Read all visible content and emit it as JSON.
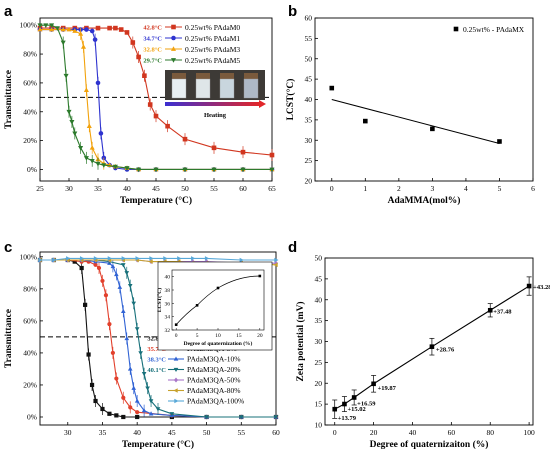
{
  "panels": [
    {
      "letter": "a"
    },
    {
      "letter": "b"
    },
    {
      "letter": "c"
    },
    {
      "letter": "d"
    }
  ],
  "chart_data": [
    {
      "panel": "a",
      "type": "line",
      "xlabel": "Temperature (°C)",
      "ylabel": "Transmittance",
      "xlim": [
        25,
        65
      ],
      "ylim": [
        -8,
        105
      ],
      "xticks": [
        "25",
        "30",
        "35",
        "40",
        "45",
        "50",
        "55",
        "60",
        "65"
      ],
      "yticks": [
        "0%",
        "20%",
        "40%",
        "60%",
        "80%",
        "100%"
      ],
      "dashed_line_y": 50,
      "inset_caption": "Heating",
      "series": [
        {
          "name": "0.25wt% PAdaM0",
          "lcst": "42.8°C",
          "color": "#d1361f",
          "marker": "square",
          "x": [
            25,
            27,
            29,
            31,
            33,
            35,
            37,
            38,
            39,
            40,
            41,
            42,
            43,
            44,
            45,
            47,
            50,
            55,
            60,
            65
          ],
          "y": [
            98,
            98,
            98,
            98,
            98,
            98,
            98,
            98,
            97,
            95,
            88,
            78,
            65,
            45,
            37,
            30,
            21,
            15,
            12,
            10
          ]
        },
        {
          "name": "0.25wt% PAdaM1",
          "lcst": "34.7°C",
          "color": "#2e33cf",
          "marker": "circle",
          "x": [
            25,
            27,
            29,
            31,
            32,
            33,
            34,
            34.5,
            35,
            35.5,
            36,
            37,
            38,
            40,
            42,
            45,
            50,
            55,
            60,
            65
          ],
          "y": [
            97,
            97,
            97,
            97,
            97,
            97,
            96,
            90,
            60,
            25,
            8,
            3,
            1,
            0,
            0,
            0,
            0,
            0,
            0,
            0
          ]
        },
        {
          "name": "0.25wt% PAdaM3",
          "lcst": "32.8°C",
          "color": "#f2a20c",
          "marker": "triangle-up",
          "x": [
            25,
            27,
            29,
            30,
            31,
            32,
            32.5,
            33,
            33.5,
            34,
            35,
            36,
            37,
            38,
            40,
            42,
            45,
            50,
            55,
            60,
            65
          ],
          "y": [
            97,
            97,
            97,
            97,
            96,
            94,
            85,
            55,
            30,
            15,
            7,
            4,
            3,
            2,
            1,
            0,
            0,
            0,
            0,
            0,
            0
          ]
        },
        {
          "name": "0.25wt% PAdaM5",
          "lcst": "29.7°C",
          "color": "#2c7a2c",
          "marker": "triangle-down",
          "x": [
            25,
            26,
            27,
            28,
            29,
            29.5,
            30,
            30.5,
            31,
            32,
            33,
            34,
            35,
            36,
            38,
            40,
            42,
            45,
            50,
            55,
            60,
            65
          ],
          "y": [
            100,
            100,
            100,
            98,
            88,
            65,
            40,
            33,
            25,
            15,
            8,
            6,
            4,
            3,
            2,
            1,
            0,
            0,
            0,
            0,
            0,
            0
          ]
        }
      ]
    },
    {
      "panel": "b",
      "type": "scatter",
      "xlabel": "AdaMMA(mol%)",
      "ylabel": "LCST(°C)",
      "xlim": [
        -0.5,
        6
      ],
      "ylim": [
        20,
        60
      ],
      "xticks": [
        "0",
        "1",
        "2",
        "3",
        "4",
        "5",
        "6"
      ],
      "yticks": [
        "20",
        "25",
        "30",
        "35",
        "40",
        "45",
        "50",
        "55",
        "60"
      ],
      "legend": "0.25wt% - PAdaMX",
      "series": [
        {
          "name": "0.25wt% - PAdaMX",
          "x": [
            0,
            1,
            3,
            5
          ],
          "y": [
            42.8,
            34.7,
            32.8,
            29.7
          ]
        }
      ],
      "fit_line": {
        "x": [
          0,
          5
        ],
        "y": [
          40.0,
          29.2
        ]
      }
    },
    {
      "panel": "c",
      "type": "line",
      "xlabel": "Temperature (°C)",
      "ylabel": "Transmittance",
      "xlim": [
        26,
        60
      ],
      "ylim": [
        -5,
        103
      ],
      "xticks": [
        "30",
        "35",
        "40",
        "45",
        "50",
        "55",
        "60"
      ],
      "yticks": [
        "0%",
        "20%",
        "40%",
        "60%",
        "80%",
        "100%"
      ],
      "dashed_line_y": 50,
      "inset": {
        "type": "line",
        "xlabel": "Degree of quaternization (%)",
        "ylabel": "LCST(°C)",
        "xlim": [
          -1,
          21
        ],
        "ylim": [
          32,
          41
        ],
        "xticks": [
          "0",
          "5",
          "10",
          "15",
          "20"
        ],
        "yticks": [
          "32",
          "34",
          "36",
          "38",
          "40"
        ],
        "x": [
          0,
          5,
          10,
          20
        ],
        "y": [
          32.8,
          35.7,
          38.3,
          40.1
        ]
      },
      "series": [
        {
          "name": "PAdaM3",
          "lcst": "32.8°C",
          "color": "#111111",
          "marker": "square",
          "x": [
            26,
            28,
            30,
            31,
            32,
            32.5,
            33,
            33.5,
            34,
            35,
            36,
            37,
            38,
            40,
            45,
            50,
            55,
            60
          ],
          "y": [
            98,
            98,
            98,
            97,
            93,
            70,
            39,
            20,
            10,
            5,
            2,
            1,
            0,
            0,
            0,
            0,
            0,
            0
          ]
        },
        {
          "name": "PAdaM3QA-5%",
          "lcst": "35.7°C",
          "color": "#e2402c",
          "marker": "circle",
          "x": [
            26,
            28,
            30,
            32,
            33,
            34,
            34.5,
            35,
            35.5,
            36,
            36.5,
            37,
            38,
            39,
            40,
            45,
            50,
            55,
            60
          ],
          "y": [
            98,
            98,
            98,
            97,
            97,
            95,
            93,
            85,
            76,
            58,
            40,
            24,
            12,
            6,
            3,
            1,
            0,
            0,
            0
          ]
        },
        {
          "name": "PAdaM3QA-10%",
          "lcst": "38.3°C",
          "color": "#3163d4",
          "marker": "triangle-up",
          "x": [
            26,
            28,
            30,
            32,
            34,
            36,
            36.5,
            37,
            37.5,
            38,
            38.5,
            39,
            39.5,
            40,
            41,
            42,
            45,
            50,
            55,
            60
          ],
          "y": [
            98,
            98,
            98,
            98,
            97,
            96,
            94,
            89,
            81,
            66,
            49,
            30,
            18,
            10,
            4,
            2,
            1,
            0,
            0,
            0
          ]
        },
        {
          "name": "PAdaM3QA-20%",
          "lcst": "40.1°C",
          "color": "#17707a",
          "marker": "triangle-down",
          "x": [
            26,
            28,
            30,
            32,
            34,
            36,
            38,
            38.5,
            39,
            39.5,
            40,
            40.5,
            41,
            41.5,
            42,
            43,
            45,
            50,
            55,
            60
          ],
          "y": [
            98,
            98,
            98,
            98,
            98,
            97,
            95,
            90,
            82,
            71,
            55,
            40,
            27,
            18,
            10,
            5,
            2,
            0,
            0,
            0
          ]
        },
        {
          "name": "PAdaM3QA-50%",
          "lcst": "",
          "color": "#a977c9",
          "marker": "diamond",
          "x": [
            26,
            28,
            30,
            32,
            34,
            36,
            38,
            40,
            42,
            44,
            46,
            48,
            50,
            55,
            60
          ],
          "y": [
            98,
            98,
            98,
            98,
            98,
            98,
            98,
            98,
            97,
            97,
            97,
            97,
            97,
            96,
            96
          ]
        },
        {
          "name": "PAdaM3QA-80%",
          "lcst": "",
          "color": "#c7a12c",
          "marker": "triangle-left",
          "x": [
            26,
            28,
            30,
            32,
            34,
            36,
            38,
            40,
            42,
            44,
            46,
            48,
            50,
            55,
            60
          ],
          "y": [
            98,
            98,
            98,
            98,
            98,
            98,
            98,
            98,
            97,
            97,
            97,
            96,
            96,
            96,
            95
          ]
        },
        {
          "name": "PAdaM3QA-100%",
          "lcst": "",
          "color": "#58a8d8",
          "marker": "triangle-right",
          "x": [
            26,
            28,
            30,
            32,
            34,
            36,
            38,
            40,
            42,
            44,
            46,
            48,
            50,
            55,
            60
          ],
          "y": [
            98,
            98,
            99,
            99,
            99,
            99,
            99,
            99,
            99,
            99,
            99,
            99,
            99,
            98,
            98
          ]
        }
      ]
    },
    {
      "panel": "d",
      "type": "line",
      "xlabel": "Degree of quaternizaiton (%)",
      "ylabel": "Zeta potential (mV)",
      "xlim": [
        -5,
        102
      ],
      "ylim": [
        10,
        50
      ],
      "xticks": [
        "0",
        "20",
        "40",
        "60",
        "80",
        "100"
      ],
      "yticks": [
        "10",
        "15",
        "20",
        "25",
        "30",
        "35",
        "40",
        "45",
        "50"
      ],
      "series": [
        {
          "name": "Zeta potential",
          "x": [
            0,
            5,
            10,
            20,
            50,
            80,
            100
          ],
          "y": [
            13.79,
            15.02,
            16.59,
            19.87,
            28.76,
            37.48,
            43.28
          ],
          "labels": [
            "+13.79",
            "+15.02",
            "+16.59",
            "+19.87",
            "+28.76",
            "+37.48",
            "+43.28"
          ]
        }
      ]
    }
  ]
}
